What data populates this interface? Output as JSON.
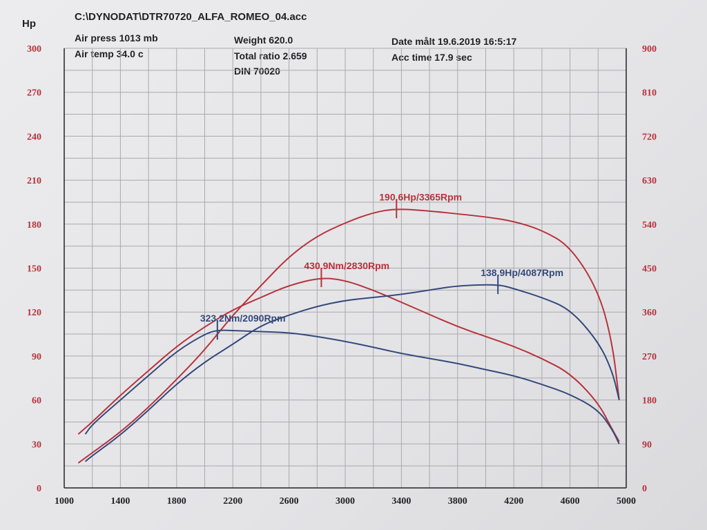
{
  "header": {
    "file": "C:\\DYNODAT\\DTR70720_ALFA_ROMEO_04.acc",
    "air_press": "Air press  1013 mb",
    "air_temp": "Air temp   34.0 c",
    "weight": "Weight    620.0",
    "total_ratio": "Total ratio 2.659",
    "din": "DIN 70020",
    "date": "Date målt 19.6.2019 16:5:17",
    "acc_time": "Acc time   17.9 sec"
  },
  "chart_data": {
    "type": "line",
    "title": "C:\\DYNODAT\\DTR70720_ALFA_ROMEO_04.acc",
    "ylabel": "Hp",
    "xlim": [
      1000,
      5000
    ],
    "ylim": [
      0,
      300
    ],
    "y2lim": [
      0,
      900
    ],
    "grid": true,
    "x_ticks": [
      "1000",
      "1400",
      "1800",
      "2200",
      "2600",
      "3000",
      "3400",
      "3800",
      "4200",
      "4600",
      "5000"
    ],
    "y_ticks": [
      "0",
      "30",
      "60",
      "90",
      "120",
      "150",
      "180",
      "210",
      "240",
      "270",
      "300"
    ],
    "y2_ticks": [
      "0",
      "90",
      "180",
      "270",
      "360",
      "450",
      "540",
      "630",
      "720",
      "810",
      "900"
    ],
    "colors": {
      "red": "#b8323a",
      "blue": "#34497a"
    },
    "series": [
      {
        "name": "Red power (Hp)",
        "axis": "left",
        "color": "red",
        "x": [
          1100,
          1200,
          1400,
          1600,
          1800,
          2000,
          2200,
          2400,
          2600,
          2800,
          3000,
          3200,
          3365,
          3600,
          3800,
          4000,
          4200,
          4400,
          4600,
          4800,
          4900,
          4950
        ],
        "y": [
          17,
          24,
          38,
          55,
          74,
          94,
          118,
          138,
          158,
          172,
          181,
          188,
          190.6,
          189,
          187,
          185,
          182,
          176,
          165,
          135,
          100,
          60
        ]
      },
      {
        "name": "Red torque (Nm)",
        "axis": "right",
        "color": "red",
        "x": [
          1100,
          1200,
          1400,
          1600,
          1800,
          2000,
          2200,
          2400,
          2600,
          2830,
          3000,
          3200,
          3400,
          3600,
          3800,
          4000,
          4200,
          4400,
          4600,
          4800,
          4900,
          4950
        ],
        "y": [
          110,
          135,
          190,
          240,
          290,
          330,
          365,
          390,
          415,
          430.9,
          425,
          405,
          380,
          355,
          330,
          310,
          290,
          265,
          235,
          175,
          120,
          95
        ]
      },
      {
        "name": "Blue torque (Nm)",
        "axis": "right",
        "color": "blue",
        "x": [
          1150,
          1200,
          1400,
          1600,
          1800,
          2000,
          2090,
          2200,
          2400,
          2600,
          2800,
          3000,
          3200,
          3400,
          3600,
          3800,
          4000,
          4200,
          4400,
          4600,
          4800,
          4900,
          4950
        ],
        "y": [
          110,
          130,
          180,
          230,
          280,
          315,
          323.2,
          322,
          320,
          318,
          310,
          300,
          288,
          275,
          265,
          255,
          242,
          230,
          212,
          192,
          160,
          120,
          90
        ]
      },
      {
        "name": "Blue power (Hp)",
        "axis": "left",
        "color": "blue",
        "x": [
          1150,
          1200,
          1400,
          1600,
          1800,
          2000,
          2200,
          2400,
          2600,
          2800,
          3000,
          3200,
          3400,
          3600,
          3800,
          4087,
          4200,
          4400,
          4600,
          4800,
          4900,
          4950
        ],
        "y": [
          18,
          22,
          36,
          53,
          71,
          86,
          98,
          111,
          118,
          124,
          128,
          130,
          132,
          135,
          138,
          138.9,
          136,
          130,
          122,
          100,
          80,
          60
        ]
      }
    ],
    "annotations": [
      {
        "text": "190.6Hp/3365Rpm",
        "x": 3365,
        "value": 190.6,
        "axis": "left",
        "color": "red"
      },
      {
        "text": "430.9Nm/2830Rpm",
        "x": 2830,
        "value": 430.9,
        "axis": "right",
        "color": "red"
      },
      {
        "text": "138.9Hp/4087Rpm",
        "x": 4087,
        "value": 138.9,
        "axis": "left",
        "color": "blue"
      },
      {
        "text": "323.2Nm/2090Rpm",
        "x": 2090,
        "value": 323.2,
        "axis": "right",
        "color": "blue"
      }
    ]
  }
}
